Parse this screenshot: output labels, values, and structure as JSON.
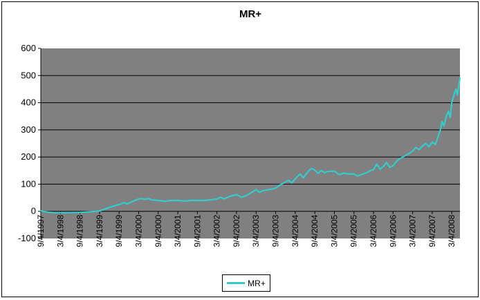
{
  "window": {
    "background_color": "#FFFFFF",
    "border_color": "#000000"
  },
  "chart_data": {
    "type": "line",
    "title": "MR+",
    "legend": {
      "position": "bottom",
      "entries": [
        {
          "label": "MR+",
          "color": "#33CCCC"
        }
      ]
    },
    "plot": {
      "background_color": "#808080",
      "gridline_color": "#000000",
      "grid": true,
      "axis_color": "#000000"
    },
    "y_axis": {
      "min": -100,
      "max": 600,
      "tick_interval": 100,
      "tick_labels": [
        "600",
        "500",
        "400",
        "300",
        "200",
        "100",
        "0",
        "-100"
      ]
    },
    "x_axis": {
      "rotation_degrees": 90,
      "tick_interval_months": 6,
      "tick_labels": [
        "9/4/1997",
        "3/4/1998",
        "9/4/1998",
        "3/4/1999",
        "9/4/1999",
        "3/4/2000",
        "9/4/2000",
        "3/4/2001",
        "9/4/2001",
        "3/4/2002",
        "9/4/2002",
        "3/4/2003",
        "9/4/2003",
        "3/4/2004",
        "9/4/2004",
        "3/4/2005",
        "9/4/2005",
        "3/4/2006",
        "9/4/2006",
        "3/4/2007",
        "9/4/2007",
        "3/4/2008"
      ]
    },
    "series": [
      {
        "name": "MR+",
        "color": "#33CCCC",
        "line_width": 2.2,
        "x_unit": "months_since_first_tick",
        "x_max": 128.5,
        "values_at_ticks": [
          0,
          -5,
          -5,
          0,
          25,
          45,
          40,
          40,
          40,
          45,
          62,
          80,
          85,
          120,
          152,
          148,
          138,
          153,
          168,
          222,
          255,
          400
        ],
        "points": [
          [
            0,
            2
          ],
          [
            2,
            -3
          ],
          [
            4,
            -5
          ],
          [
            8,
            -5
          ],
          [
            12,
            -4
          ],
          [
            15,
            -2
          ],
          [
            18,
            1
          ],
          [
            20,
            10
          ],
          [
            22,
            18
          ],
          [
            24,
            25
          ],
          [
            25.5,
            32
          ],
          [
            26.5,
            27
          ],
          [
            28,
            36
          ],
          [
            30,
            45
          ],
          [
            31,
            47
          ],
          [
            32,
            44
          ],
          [
            33,
            47
          ],
          [
            34,
            42
          ],
          [
            36,
            40
          ],
          [
            38,
            37
          ],
          [
            40,
            40
          ],
          [
            42,
            40
          ],
          [
            44,
            38
          ],
          [
            46,
            40
          ],
          [
            48,
            40
          ],
          [
            50,
            40
          ],
          [
            52,
            42
          ],
          [
            54,
            45
          ],
          [
            55,
            52
          ],
          [
            56,
            46
          ],
          [
            57,
            50
          ],
          [
            58,
            55
          ],
          [
            60,
            62
          ],
          [
            61.5,
            52
          ],
          [
            63,
            58
          ],
          [
            65,
            72
          ],
          [
            66,
            80
          ],
          [
            67,
            70
          ],
          [
            68,
            76
          ],
          [
            70,
            80
          ],
          [
            72,
            85
          ],
          [
            73.5,
            98
          ],
          [
            75,
            108
          ],
          [
            76,
            114
          ],
          [
            77,
            105
          ],
          [
            78,
            120
          ],
          [
            79.5,
            138
          ],
          [
            80.5,
            123
          ],
          [
            82,
            148
          ],
          [
            83,
            158
          ],
          [
            84,
            152
          ],
          [
            85,
            140
          ],
          [
            86,
            150
          ],
          [
            87,
            142
          ],
          [
            88,
            147
          ],
          [
            90,
            148
          ],
          [
            91.5,
            135
          ],
          [
            93,
            141
          ],
          [
            94.5,
            137
          ],
          [
            96,
            138
          ],
          [
            97,
            130
          ],
          [
            98.5,
            136
          ],
          [
            100,
            143
          ],
          [
            101,
            150
          ],
          [
            102,
            153
          ],
          [
            103,
            174
          ],
          [
            104,
            155
          ],
          [
            105,
            165
          ],
          [
            106,
            180
          ],
          [
            107,
            162
          ],
          [
            108,
            168
          ],
          [
            109.5,
            190
          ],
          [
            111,
            200
          ],
          [
            112.5,
            210
          ],
          [
            114,
            222
          ],
          [
            115,
            235
          ],
          [
            116,
            227
          ],
          [
            117,
            240
          ],
          [
            118,
            250
          ],
          [
            119,
            238
          ],
          [
            120,
            255
          ],
          [
            121,
            246
          ],
          [
            121.8,
            275
          ],
          [
            122.5,
            300
          ],
          [
            123,
            330
          ],
          [
            123.6,
            315
          ],
          [
            124.3,
            350
          ],
          [
            125,
            368
          ],
          [
            125.5,
            345
          ],
          [
            126,
            400
          ],
          [
            126.8,
            435
          ],
          [
            127.3,
            450
          ],
          [
            127.7,
            428
          ],
          [
            128.2,
            468
          ],
          [
            128.5,
            490
          ]
        ]
      }
    ]
  }
}
